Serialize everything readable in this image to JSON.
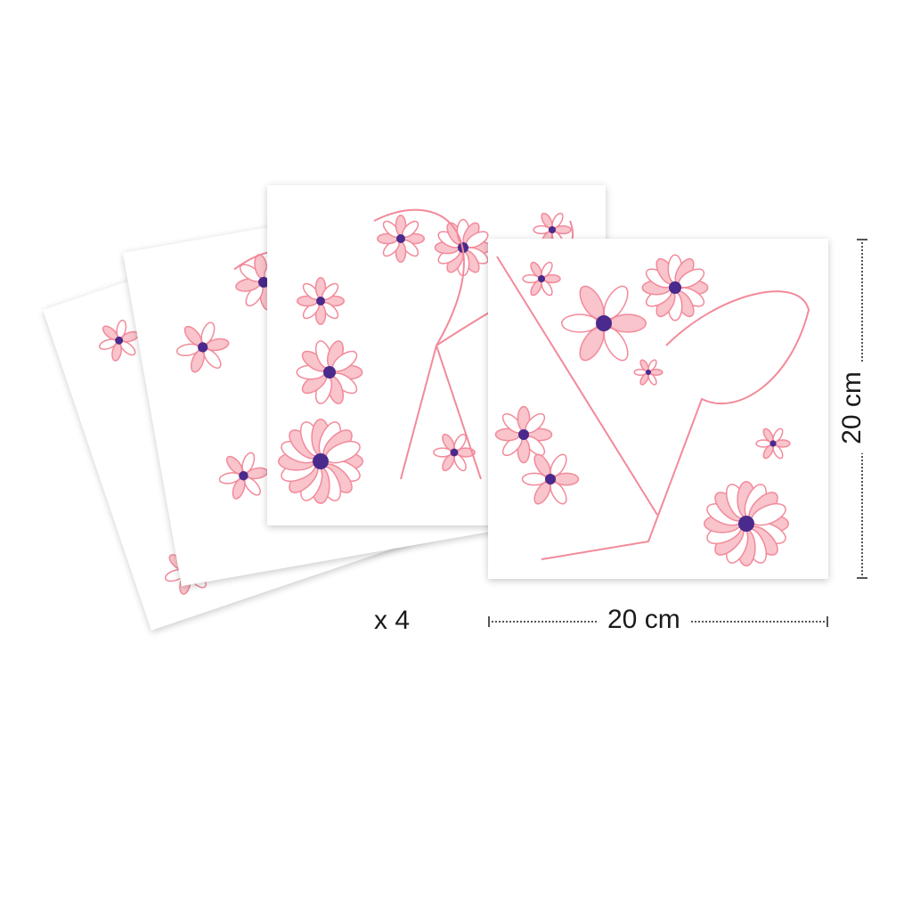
{
  "product": {
    "quantity_label": "x 4",
    "width_label": "20 cm",
    "height_label": "20 cm",
    "cards": [
      {
        "name": "fairy-swing-card-back"
      },
      {
        "name": "butterfly-card"
      },
      {
        "name": "fairy-flowers-card"
      },
      {
        "name": "fairy-swing-card"
      }
    ]
  },
  "colors": {
    "pink": "#f28a9a",
    "pink_fill": "#f9c4cc",
    "purple": "#4a2a8c",
    "lilac": "#9a8cc4"
  }
}
